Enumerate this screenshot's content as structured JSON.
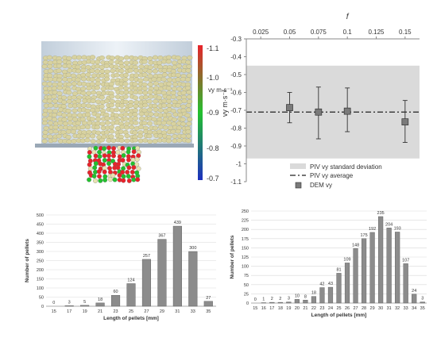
{
  "colorbar": {
    "label": "vy m·s⁻¹",
    "ticks": [
      "-1.1",
      "-1.0",
      "-0.9",
      "-0.8",
      "-0.7"
    ],
    "colors": [
      "#e8232b",
      "#22c12e",
      "#1d2fbf"
    ]
  },
  "chart_data": [
    {
      "type": "scatter",
      "title": "",
      "xlabel": "f",
      "ylabel": "vy m·s⁻¹",
      "x_ticks": [
        "0.025",
        "0.05",
        "0.075",
        "0.1",
        "0.125",
        "0.15"
      ],
      "y_ticks": [
        "-0.3",
        "-0.4",
        "-0.5",
        "-0.6",
        "-0.7",
        "-0.8",
        "-0.9",
        "-1",
        "-1.1"
      ],
      "xlim": [
        0.0125,
        0.1625
      ],
      "ylim": [
        -1.1,
        -0.3
      ],
      "x_axis_position": "top",
      "band": {
        "name": "PIV vy standard deviation",
        "low": -0.97,
        "high": -0.45
      },
      "average_line": {
        "name": "PIV vy average",
        "value": -0.71
      },
      "series": [
        {
          "name": "DEM vy",
          "x": [
            0.05,
            0.075,
            0.1,
            0.15
          ],
          "y": [
            -0.685,
            -0.71,
            -0.705,
            -0.765
          ],
          "err_low": [
            -0.77,
            -0.86,
            -0.82,
            -0.88
          ],
          "err_high": [
            -0.6,
            -0.57,
            -0.575,
            -0.645
          ]
        }
      ],
      "legend": [
        "PIV vy standard deviation",
        "PIV vy average",
        "DEM vy"
      ],
      "legend_placement": "bottom-right"
    },
    {
      "type": "bar",
      "xlabel": "Length of pellets [mm]",
      "ylabel": "Number of pellets",
      "categories": [
        "15",
        "17",
        "19",
        "21",
        "23",
        "25",
        "27",
        "29",
        "31",
        "33",
        "35"
      ],
      "values": [
        0,
        3,
        5,
        18,
        60,
        124,
        257,
        367,
        439,
        300,
        27
      ],
      "ylim": [
        0,
        500
      ],
      "y_ticks": [
        "0",
        "50",
        "100",
        "150",
        "200",
        "250",
        "300",
        "350",
        "400",
        "450",
        "500"
      ],
      "bar_color": "#8c8c8c"
    },
    {
      "type": "bar",
      "xlabel": "Length of pellets [mm]",
      "ylabel": "Number of pellets",
      "categories": [
        "15",
        "16",
        "17",
        "18",
        "19",
        "20",
        "21",
        "22",
        "23",
        "24",
        "25",
        "26",
        "27",
        "28",
        "29",
        "30",
        "31",
        "32",
        "33",
        "34",
        "35"
      ],
      "values": [
        0,
        1,
        2,
        2,
        3,
        10,
        8,
        18,
        42,
        43,
        81,
        109,
        148,
        175,
        192,
        235,
        204,
        193,
        107,
        24,
        3
      ],
      "ylim": [
        0,
        250
      ],
      "y_ticks": [
        "0",
        "25",
        "50",
        "75",
        "100",
        "125",
        "150",
        "175",
        "200",
        "225",
        "250"
      ],
      "bar_color": "#8c8c8c"
    }
  ]
}
